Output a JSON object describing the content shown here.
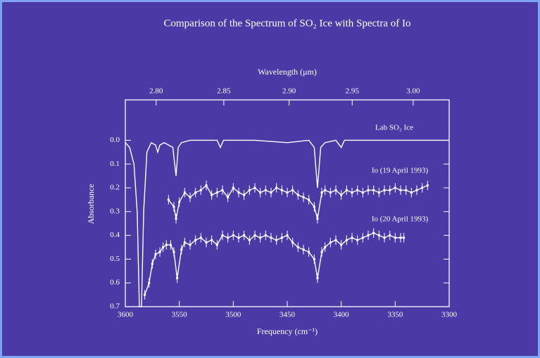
{
  "chart_data": {
    "type": "line",
    "title": "Comparison of the Spectrum of SO₂ Ice with Spectra of Io",
    "x_label": "Frequency (cm⁻¹)",
    "x2_label": "Wavelength (μm)",
    "y_label": "Absorbance",
    "xlim": [
      3600,
      3300
    ],
    "xticks": [
      3600,
      3550,
      3500,
      3450,
      3400,
      3350,
      3300
    ],
    "x2ticks": [
      {
        "value": 2.8,
        "label": "2.80"
      },
      2.85,
      {
        "value": 2.9,
        "label": "2.90"
      },
      2.95,
      {
        "value": 3.0,
        "label": "3.00"
      }
    ],
    "ylim": [
      0.7,
      -0.17
    ],
    "yticks": [
      {
        "value": 0,
        "label": "0.0"
      },
      0.1,
      0.2,
      0.3,
      0.4,
      0.5,
      0.6,
      0.7
    ],
    "series": [
      {
        "name": "Lab SO₂ Ice",
        "color": "#ffffff",
        "error": null,
        "x": [
          3600,
          3596,
          3592,
          3589,
          3587,
          3585,
          3583,
          3580,
          3576,
          3572,
          3570,
          3568,
          3564,
          3556,
          3553,
          3551,
          3548,
          3540,
          3515,
          3512,
          3509,
          3480,
          3450,
          3430,
          3425,
          3422,
          3419,
          3415,
          3405,
          3400,
          3397,
          3380,
          3350,
          3300
        ],
        "values": [
          0.01,
          0.03,
          0.1,
          0.3,
          0.7,
          0.7,
          0.3,
          0.05,
          0.01,
          0.02,
          0.05,
          0.02,
          0.01,
          0.03,
          0.15,
          0.03,
          0.01,
          0.0,
          0.0,
          0.03,
          0.0,
          0.0,
          0.01,
          0.0,
          0.03,
          0.2,
          0.03,
          0.01,
          0.0,
          0.03,
          0.0,
          0.0,
          0.0,
          0.0
        ]
      },
      {
        "name": "Io (19 April 1993)",
        "color": "#ffffff",
        "error": 0.02,
        "x": [
          3560,
          3555,
          3553,
          3550,
          3545,
          3540,
          3535,
          3530,
          3525,
          3520,
          3515,
          3510,
          3505,
          3500,
          3495,
          3490,
          3485,
          3480,
          3475,
          3470,
          3465,
          3460,
          3455,
          3450,
          3445,
          3440,
          3435,
          3430,
          3425,
          3422,
          3418,
          3415,
          3410,
          3405,
          3400,
          3395,
          3390,
          3385,
          3380,
          3375,
          3370,
          3365,
          3360,
          3355,
          3350,
          3345,
          3340,
          3335,
          3330,
          3325,
          3320
        ],
        "values": [
          0.25,
          0.28,
          0.33,
          0.26,
          0.22,
          0.24,
          0.22,
          0.21,
          0.19,
          0.23,
          0.22,
          0.21,
          0.24,
          0.2,
          0.22,
          0.23,
          0.21,
          0.2,
          0.22,
          0.21,
          0.22,
          0.2,
          0.21,
          0.22,
          0.21,
          0.23,
          0.24,
          0.25,
          0.28,
          0.33,
          0.22,
          0.21,
          0.22,
          0.21,
          0.23,
          0.21,
          0.22,
          0.21,
          0.22,
          0.21,
          0.21,
          0.22,
          0.21,
          0.21,
          0.2,
          0.21,
          0.21,
          0.22,
          0.21,
          0.2,
          0.19
        ]
      },
      {
        "name": "Io (20 April 1993)",
        "color": "#ffffff",
        "error": 0.02,
        "x": [
          3582,
          3578,
          3575,
          3572,
          3568,
          3565,
          3562,
          3558,
          3555,
          3552,
          3548,
          3545,
          3540,
          3535,
          3530,
          3525,
          3520,
          3515,
          3510,
          3505,
          3500,
          3495,
          3490,
          3485,
          3480,
          3475,
          3470,
          3465,
          3460,
          3455,
          3450,
          3445,
          3440,
          3435,
          3430,
          3425,
          3422,
          3418,
          3415,
          3410,
          3405,
          3400,
          3395,
          3390,
          3385,
          3380,
          3375,
          3370,
          3365,
          3360,
          3355,
          3350,
          3345,
          3342
        ],
        "values": [
          0.65,
          0.6,
          0.52,
          0.48,
          0.47,
          0.45,
          0.44,
          0.44,
          0.47,
          0.58,
          0.46,
          0.43,
          0.44,
          0.42,
          0.41,
          0.43,
          0.42,
          0.44,
          0.4,
          0.41,
          0.4,
          0.41,
          0.4,
          0.42,
          0.4,
          0.41,
          0.4,
          0.41,
          0.42,
          0.41,
          0.4,
          0.43,
          0.45,
          0.46,
          0.47,
          0.5,
          0.58,
          0.47,
          0.45,
          0.43,
          0.42,
          0.44,
          0.42,
          0.41,
          0.42,
          0.41,
          0.4,
          0.39,
          0.4,
          0.41,
          0.4,
          0.41,
          0.41,
          0.41
        ]
      }
    ]
  }
}
